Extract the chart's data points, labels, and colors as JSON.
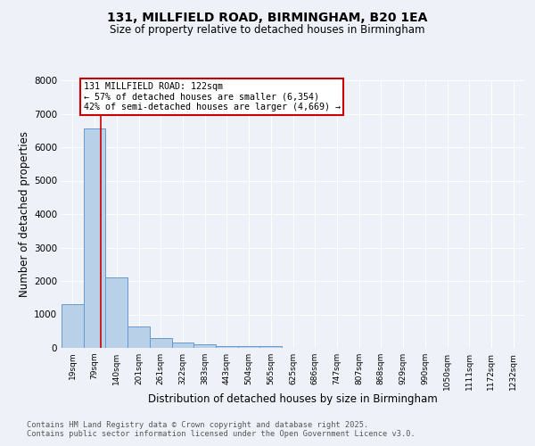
{
  "title1": "131, MILLFIELD ROAD, BIRMINGHAM, B20 1EA",
  "title2": "Size of property relative to detached houses in Birmingham",
  "xlabel": "Distribution of detached houses by size in Birmingham",
  "ylabel": "Number of detached properties",
  "categories": [
    "19sqm",
    "79sqm",
    "140sqm",
    "201sqm",
    "261sqm",
    "322sqm",
    "383sqm",
    "443sqm",
    "504sqm",
    "565sqm",
    "625sqm",
    "686sqm",
    "747sqm",
    "807sqm",
    "868sqm",
    "929sqm",
    "990sqm",
    "1050sqm",
    "1111sqm",
    "1172sqm",
    "1232sqm"
  ],
  "values": [
    1310,
    6560,
    2100,
    650,
    300,
    150,
    100,
    50,
    50,
    50,
    0,
    0,
    0,
    0,
    0,
    0,
    0,
    0,
    0,
    0,
    0
  ],
  "bar_color": "#b8d0e8",
  "bar_edge_color": "#6699cc",
  "annotation_text": "131 MILLFIELD ROAD: 122sqm\n← 57% of detached houses are smaller (6,354)\n42% of semi-detached houses are larger (4,669) →",
  "annotation_box_color": "#ffffff",
  "annotation_box_edge": "#cc0000",
  "ylim": [
    0,
    8000
  ],
  "yticks": [
    0,
    1000,
    2000,
    3000,
    4000,
    5000,
    6000,
    7000,
    8000
  ],
  "footer1": "Contains HM Land Registry data © Crown copyright and database right 2025.",
  "footer2": "Contains public sector information licensed under the Open Government Licence v3.0.",
  "bg_color": "#eef2f8",
  "grid_color": "#ffffff",
  "red_line_color": "#cc0000",
  "red_line_xdata": 1.3
}
